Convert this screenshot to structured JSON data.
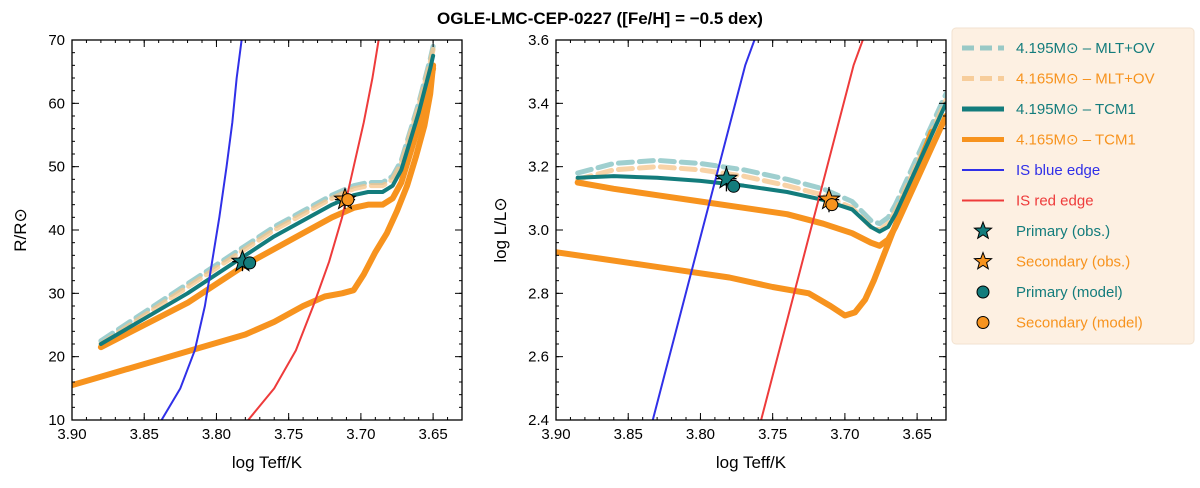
{
  "figure": {
    "title": "OGLE-LMC-CEP-0227 ([Fe/H] = −0.5 dex)"
  },
  "chart_data": [
    {
      "type": "line",
      "panel": "left",
      "xlabel": "log Teff/K",
      "ylabel": "R/R⊙",
      "xlim": [
        3.9,
        3.63
      ],
      "ylim": [
        10,
        70
      ],
      "xticks": [
        "3.90",
        "3.85",
        "3.80",
        "3.75",
        "3.70",
        "3.65"
      ],
      "xtick_values": [
        3.9,
        3.85,
        3.8,
        3.75,
        3.7,
        3.65
      ],
      "yticks": [
        "10",
        "20",
        "30",
        "40",
        "50",
        "60",
        "70"
      ],
      "ytick_values": [
        10,
        20,
        30,
        40,
        50,
        60,
        70
      ],
      "series": [
        {
          "name": "4.195M⊙ – MLT+OV",
          "color": "#7fbfbf",
          "style": "dashed",
          "x": [
            3.88,
            3.85,
            3.82,
            3.8,
            3.78,
            3.76,
            3.74,
            3.72,
            3.705,
            3.695,
            3.685,
            3.678,
            3.672,
            3.668,
            3.664,
            3.66,
            3.656,
            3.652,
            3.65
          ],
          "y": [
            22.5,
            27.0,
            31.5,
            34.5,
            37.5,
            40.5,
            43.0,
            45.5,
            47.0,
            47.5,
            47.5,
            48.5,
            51.0,
            54.0,
            57.0,
            60.0,
            63.5,
            67.0,
            69.0
          ]
        },
        {
          "name": "4.165M⊙ – MLT+OV",
          "color": "#f5c48a",
          "style": "dashed",
          "x": [
            3.88,
            3.85,
            3.82,
            3.8,
            3.78,
            3.76,
            3.74,
            3.72,
            3.705,
            3.695,
            3.685,
            3.678,
            3.672,
            3.668,
            3.664,
            3.66,
            3.656,
            3.652,
            3.65
          ],
          "y": [
            22.0,
            26.5,
            31.0,
            34.0,
            37.0,
            40.0,
            42.5,
            45.0,
            46.5,
            47.0,
            47.0,
            48.0,
            50.5,
            53.5,
            56.5,
            59.5,
            63.0,
            66.5,
            68.5
          ]
        },
        {
          "name": "4.195M⊙ – TCM1",
          "color": "#137c7c",
          "style": "solid",
          "x": [
            3.88,
            3.85,
            3.82,
            3.8,
            3.78,
            3.76,
            3.74,
            3.72,
            3.705,
            3.695,
            3.685,
            3.678,
            3.672,
            3.668,
            3.664,
            3.66,
            3.656,
            3.652,
            3.65
          ],
          "y": [
            22.0,
            26.0,
            30.0,
            33.0,
            36.0,
            39.0,
            41.5,
            44.0,
            45.5,
            46.0,
            46.0,
            47.0,
            49.5,
            52.5,
            55.5,
            58.5,
            62.0,
            65.5,
            67.5
          ]
        },
        {
          "name": "4.165M⊙ – TCM1",
          "color": "#f7931e",
          "style": "solid",
          "x": [
            3.88,
            3.85,
            3.82,
            3.8,
            3.78,
            3.76,
            3.74,
            3.72,
            3.705,
            3.695,
            3.685,
            3.678,
            3.672,
            3.668,
            3.664,
            3.66,
            3.656,
            3.652,
            3.65
          ],
          "y": [
            21.5,
            25.0,
            28.5,
            31.5,
            34.5,
            37.0,
            39.5,
            42.0,
            43.5,
            44.0,
            44.0,
            45.0,
            47.5,
            50.5,
            53.5,
            56.5,
            60.0,
            63.5,
            65.5
          ]
        },
        {
          "name": "IS blue edge",
          "color": "#3030e8",
          "style": "solid",
          "x": [
            3.838,
            3.825,
            3.815,
            3.808,
            3.803,
            3.798,
            3.793,
            3.789,
            3.786,
            3.782
          ],
          "y": [
            10,
            15,
            21,
            28,
            35,
            42,
            50,
            57,
            64,
            71
          ]
        },
        {
          "name": "IS red edge",
          "color": "#ee3b3b",
          "style": "solid",
          "x": [
            3.778,
            3.76,
            3.745,
            3.733,
            3.722,
            3.713,
            3.705,
            3.698,
            3.692,
            3.687
          ],
          "y": [
            10,
            15,
            21,
            28,
            35,
            42,
            50,
            57,
            64,
            71
          ]
        },
        {
          "name": "Lower branch",
          "color": "#f7931e",
          "style": "solid",
          "x": [
            3.9,
            3.87,
            3.84,
            3.81,
            3.78,
            3.76,
            3.74,
            3.725,
            3.713,
            3.705,
            3.698,
            3.69,
            3.682,
            3.675,
            3.668,
            3.662,
            3.656,
            3.652,
            3.65
          ],
          "y": [
            15.5,
            17.5,
            19.5,
            21.5,
            23.5,
            25.5,
            28.0,
            29.5,
            30.0,
            30.5,
            33.0,
            36.5,
            39.5,
            43.0,
            47.0,
            51.5,
            56.5,
            61.5,
            66.0
          ]
        }
      ],
      "points": [
        {
          "name": "Primary (obs.)",
          "marker": "star",
          "color": "#137c7c",
          "x": 3.782,
          "y": 35.0,
          "xerr": 0.007,
          "yerr": 1.5
        },
        {
          "name": "Secondary (obs.)",
          "marker": "star",
          "color": "#f7931e",
          "x": 3.711,
          "y": 44.8,
          "xerr": 0.007,
          "yerr": 1.5
        },
        {
          "name": "Primary (model)",
          "marker": "circle",
          "color": "#137c7c",
          "x": 3.777,
          "y": 34.8
        },
        {
          "name": "Secondary (model)",
          "marker": "circle",
          "color": "#f7931e",
          "x": 3.709,
          "y": 44.8
        }
      ]
    },
    {
      "type": "line",
      "panel": "right",
      "xlabel": "log Teff/K",
      "ylabel": "log L/L⊙",
      "xlim": [
        3.9,
        3.63
      ],
      "ylim": [
        2.4,
        3.6
      ],
      "xticks": [
        "3.90",
        "3.85",
        "3.80",
        "3.75",
        "3.70",
        "3.65"
      ],
      "xtick_values": [
        3.9,
        3.85,
        3.8,
        3.75,
        3.7,
        3.65
      ],
      "yticks": [
        "2.4",
        "2.6",
        "2.8",
        "3.0",
        "3.2",
        "3.4",
        "3.6"
      ],
      "ytick_values": [
        2.4,
        2.6,
        2.8,
        3.0,
        3.2,
        3.4,
        3.6
      ],
      "series": [
        {
          "name": "4.195M⊙ – MLT+OV",
          "color": "#7fbfbf",
          "style": "dashed",
          "x": [
            3.885,
            3.86,
            3.83,
            3.8,
            3.77,
            3.74,
            3.715,
            3.695,
            3.682,
            3.676,
            3.67,
            3.665,
            3.66,
            3.655,
            3.65,
            3.645,
            3.64,
            3.635,
            3.63
          ],
          "y": [
            3.18,
            3.21,
            3.22,
            3.21,
            3.19,
            3.16,
            3.13,
            3.09,
            3.03,
            3.02,
            3.04,
            3.08,
            3.13,
            3.18,
            3.23,
            3.28,
            3.33,
            3.38,
            3.43
          ]
        },
        {
          "name": "4.165M⊙ – MLT+OV",
          "color": "#f5c48a",
          "style": "dashed",
          "x": [
            3.885,
            3.86,
            3.83,
            3.8,
            3.77,
            3.74,
            3.715,
            3.695,
            3.682,
            3.676,
            3.67,
            3.665,
            3.66,
            3.655,
            3.65,
            3.645,
            3.64,
            3.635,
            3.63
          ],
          "y": [
            3.16,
            3.19,
            3.2,
            3.19,
            3.17,
            3.14,
            3.11,
            3.07,
            3.01,
            3.0,
            3.02,
            3.06,
            3.11,
            3.16,
            3.21,
            3.26,
            3.31,
            3.36,
            3.41
          ]
        },
        {
          "name": "4.195M⊙ – TCM1",
          "color": "#137c7c",
          "style": "solid",
          "x": [
            3.885,
            3.86,
            3.83,
            3.8,
            3.77,
            3.74,
            3.715,
            3.695,
            3.682,
            3.676,
            3.67,
            3.665,
            3.66,
            3.655,
            3.65,
            3.645,
            3.64,
            3.635,
            3.63
          ],
          "y": [
            3.165,
            3.17,
            3.165,
            3.155,
            3.14,
            3.12,
            3.095,
            3.065,
            3.01,
            2.995,
            3.01,
            3.05,
            3.1,
            3.15,
            3.2,
            3.25,
            3.3,
            3.35,
            3.4
          ]
        },
        {
          "name": "4.165M⊙ – TCM1",
          "color": "#f7931e",
          "style": "solid",
          "x": [
            3.885,
            3.86,
            3.83,
            3.8,
            3.77,
            3.74,
            3.715,
            3.695,
            3.682,
            3.676,
            3.67,
            3.665,
            3.66,
            3.655,
            3.65,
            3.645,
            3.64,
            3.635,
            3.63
          ],
          "y": [
            3.15,
            3.13,
            3.11,
            3.09,
            3.07,
            3.05,
            3.02,
            2.99,
            2.96,
            2.95,
            2.97,
            3.01,
            3.06,
            3.11,
            3.16,
            3.21,
            3.26,
            3.31,
            3.36
          ]
        },
        {
          "name": "IS blue edge",
          "color": "#3030e8",
          "style": "solid",
          "x": [
            3.833,
            3.825,
            3.817,
            3.809,
            3.801,
            3.793,
            3.785,
            3.777,
            3.769,
            3.761
          ],
          "y": [
            2.4,
            2.54,
            2.68,
            2.82,
            2.96,
            3.1,
            3.24,
            3.38,
            3.52,
            3.62
          ]
        },
        {
          "name": "IS red edge",
          "color": "#ee3b3b",
          "style": "solid",
          "x": [
            3.758,
            3.75,
            3.742,
            3.734,
            3.726,
            3.718,
            3.71,
            3.702,
            3.694,
            3.686
          ],
          "y": [
            2.4,
            2.54,
            2.68,
            2.82,
            2.96,
            3.1,
            3.24,
            3.38,
            3.52,
            3.62
          ]
        },
        {
          "name": "Lower branch",
          "color": "#f7931e",
          "style": "solid",
          "x": [
            3.9,
            3.87,
            3.84,
            3.81,
            3.78,
            3.75,
            3.725,
            3.71,
            3.7,
            3.693,
            3.686,
            3.68,
            3.674,
            3.668,
            3.662,
            3.656,
            3.65,
            3.645,
            3.64
          ],
          "y": [
            2.93,
            2.91,
            2.89,
            2.87,
            2.85,
            2.82,
            2.8,
            2.76,
            2.73,
            2.74,
            2.78,
            2.84,
            2.91,
            2.98,
            3.05,
            3.12,
            3.19,
            3.25,
            3.31
          ]
        }
      ],
      "points": [
        {
          "name": "Primary (obs.)",
          "marker": "star",
          "color": "#137c7c",
          "x": 3.782,
          "y": 3.162,
          "xerr": 0.007,
          "yerr": 0.04
        },
        {
          "name": "Secondary (obs.)",
          "marker": "star",
          "color": "#f7931e",
          "x": 3.711,
          "y": 3.096,
          "xerr": 0.007,
          "yerr": 0.04
        },
        {
          "name": "Primary (model)",
          "marker": "circle",
          "color": "#137c7c",
          "x": 3.777,
          "y": 3.138
        },
        {
          "name": "Secondary (model)",
          "marker": "circle",
          "color": "#f7931e",
          "x": 3.709,
          "y": 3.08
        }
      ]
    }
  ],
  "legend": {
    "placement": "right",
    "items": [
      {
        "label": "4.195M⊙ – MLT+OV",
        "type": "dashed-line",
        "color": "#7fbfbf",
        "text_color": "#137c7c"
      },
      {
        "label": "4.165M⊙ – MLT+OV",
        "type": "dashed-line",
        "color": "#f5c48a",
        "text_color": "#f7931e"
      },
      {
        "label": "4.195M⊙ – TCM1",
        "type": "solid-line",
        "color": "#137c7c",
        "text_color": "#137c7c"
      },
      {
        "label": "4.165M⊙ – TCM1",
        "type": "solid-line",
        "color": "#f7931e",
        "text_color": "#f7931e"
      },
      {
        "label": "IS blue edge",
        "type": "thin-line",
        "color": "#3030e8",
        "text_color": "#3030e8"
      },
      {
        "label": "IS red edge",
        "type": "thin-line",
        "color": "#ee3b3b",
        "text_color": "#ee3b3b"
      },
      {
        "label": "Primary (obs.)",
        "type": "star",
        "color": "#137c7c",
        "text_color": "#137c7c"
      },
      {
        "label": "Secondary (obs.)",
        "type": "star",
        "color": "#f7931e",
        "text_color": "#f7931e"
      },
      {
        "label": "Primary (model)",
        "type": "circle",
        "color": "#137c7c",
        "text_color": "#137c7c"
      },
      {
        "label": "Secondary (model)",
        "type": "circle",
        "color": "#f7931e",
        "text_color": "#f7931e"
      }
    ]
  }
}
